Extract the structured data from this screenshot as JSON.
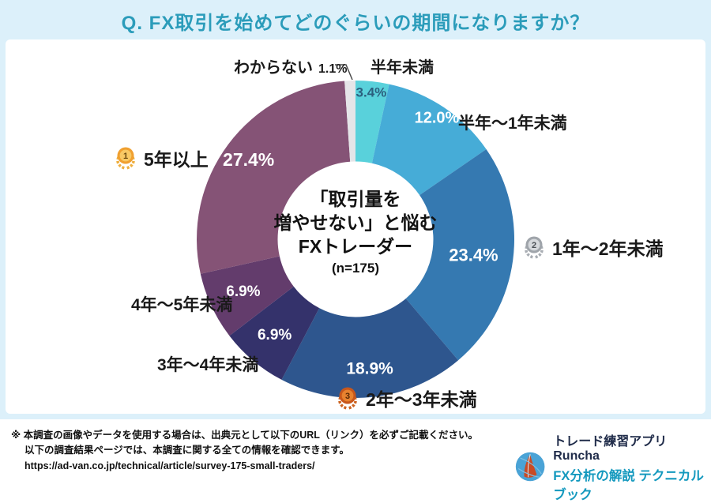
{
  "title": "Q. FX取引を始めてどのぐらいの期間になりますか？",
  "chart_data": {
    "type": "pie",
    "variant": "donut",
    "title": "Q. FX取引を始めてどのぐらいの期間になりますか？",
    "categories": [
      "半年未満",
      "半年～1年未満",
      "1年～2年未満",
      "2年～3年未満",
      "3年～4年未満",
      "4年～5年未満",
      "5年以上",
      "わからない"
    ],
    "values": [
      3.4,
      12.0,
      23.4,
      18.9,
      6.9,
      6.9,
      27.4,
      1.1
    ],
    "unit": "%",
    "percent_labels": [
      "3.4%",
      "12.0%",
      "23.4%",
      "18.9%",
      "6.9%",
      "6.9%",
      "27.4%",
      "1.1%"
    ],
    "colors": [
      "#59D1DB",
      "#46ACD7",
      "#3579B1",
      "#2E568E",
      "#34326B",
      "#633C6C",
      "#855376",
      "#E5E5E8"
    ],
    "start_angle_deg": 0,
    "direction": "clockwise",
    "donut_hole_ratio": 0.49,
    "percent_label_inside": [
      true,
      true,
      true,
      true,
      true,
      true,
      true,
      false
    ],
    "percent_label_colors": [
      "#2B5F7E",
      "#ffffff",
      "#ffffff",
      "#ffffff",
      "#ffffff",
      "#ffffff",
      "#ffffff",
      "#1a1a1a"
    ],
    "percent_label_radius_factor": [
      0.93,
      0.92,
      0.75,
      0.82,
      0.79,
      0.78,
      0.84,
      0
    ],
    "percent_label_font_px": [
      17,
      20,
      22,
      21,
      19,
      19,
      23,
      16
    ],
    "ranks": {
      "gold": "1",
      "silver": "2",
      "bronze": "3"
    },
    "rank_categories": {
      "gold": "5年以上",
      "silver": "1年～2年未満",
      "bronze": "2年～3年未満"
    },
    "center_label": {
      "line1": "「取引量を",
      "line2": "増やせない」と悩む",
      "line3": "FXトレーダー",
      "sample_size": "(n=175)"
    },
    "callout": {
      "label": "わからない",
      "value": "1.1%"
    }
  },
  "footer": {
    "note1": "※ 本調査の画像やデータを使用する場合は、出典元として以下のURL（リンク）を必ずご記載ください。",
    "note2": "以下の調査結果ページでは、本調査に関する全ての情報を確認できます。",
    "note3": "https://ad-van.co.jp/technical/article/survey-175-small-traders/",
    "brand_app": "トレード練習アプリ Runcha",
    "brand_book": "FX分析の解説 テクニカルブック"
  }
}
